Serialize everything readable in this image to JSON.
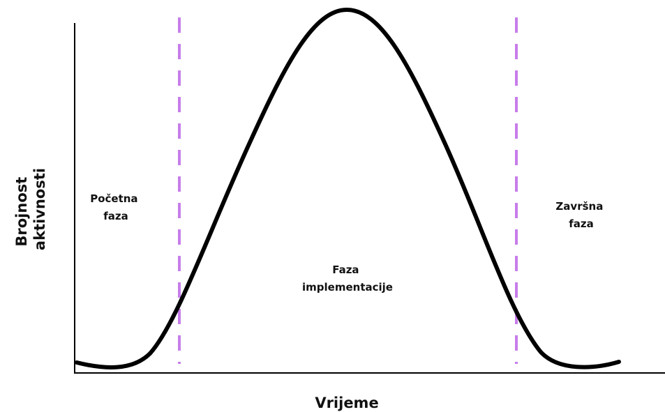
{
  "y_axis_label": [
    "Brojnost",
    "aktivnosti"
  ],
  "x_axis_label": "Vrijeme",
  "phases": [
    {
      "lines": [
        "Početna",
        "faza"
      ]
    },
    {
      "lines": [
        "Faza",
        "implementacije"
      ]
    },
    {
      "lines": [
        "Završna",
        "faza"
      ]
    }
  ]
}
